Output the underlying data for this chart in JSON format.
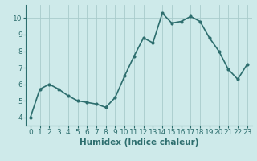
{
  "x": [
    0,
    1,
    2,
    3,
    4,
    5,
    6,
    7,
    8,
    9,
    10,
    11,
    12,
    13,
    14,
    15,
    16,
    17,
    18,
    19,
    20,
    21,
    22,
    23
  ],
  "y": [
    4.0,
    5.7,
    6.0,
    5.7,
    5.3,
    5.0,
    4.9,
    4.8,
    4.6,
    5.2,
    6.5,
    7.7,
    8.8,
    8.5,
    10.3,
    9.7,
    9.8,
    10.1,
    9.8,
    8.8,
    8.0,
    6.9,
    6.3,
    7.2
  ],
  "line_color": "#2d6e6e",
  "marker": "o",
  "marker_size": 2,
  "line_width": 1.2,
  "bg_color": "#ceeaea",
  "grid_color": "#a8cccc",
  "xlabel": "Humidex (Indice chaleur)",
  "xlim": [
    -0.5,
    23.5
  ],
  "ylim": [
    3.5,
    10.8
  ],
  "yticks": [
    4,
    5,
    6,
    7,
    8,
    9,
    10
  ],
  "xticks": [
    0,
    1,
    2,
    3,
    4,
    5,
    6,
    7,
    8,
    9,
    10,
    11,
    12,
    13,
    14,
    15,
    16,
    17,
    18,
    19,
    20,
    21,
    22,
    23
  ],
  "tick_fontsize": 6.5,
  "label_fontsize": 7.5
}
